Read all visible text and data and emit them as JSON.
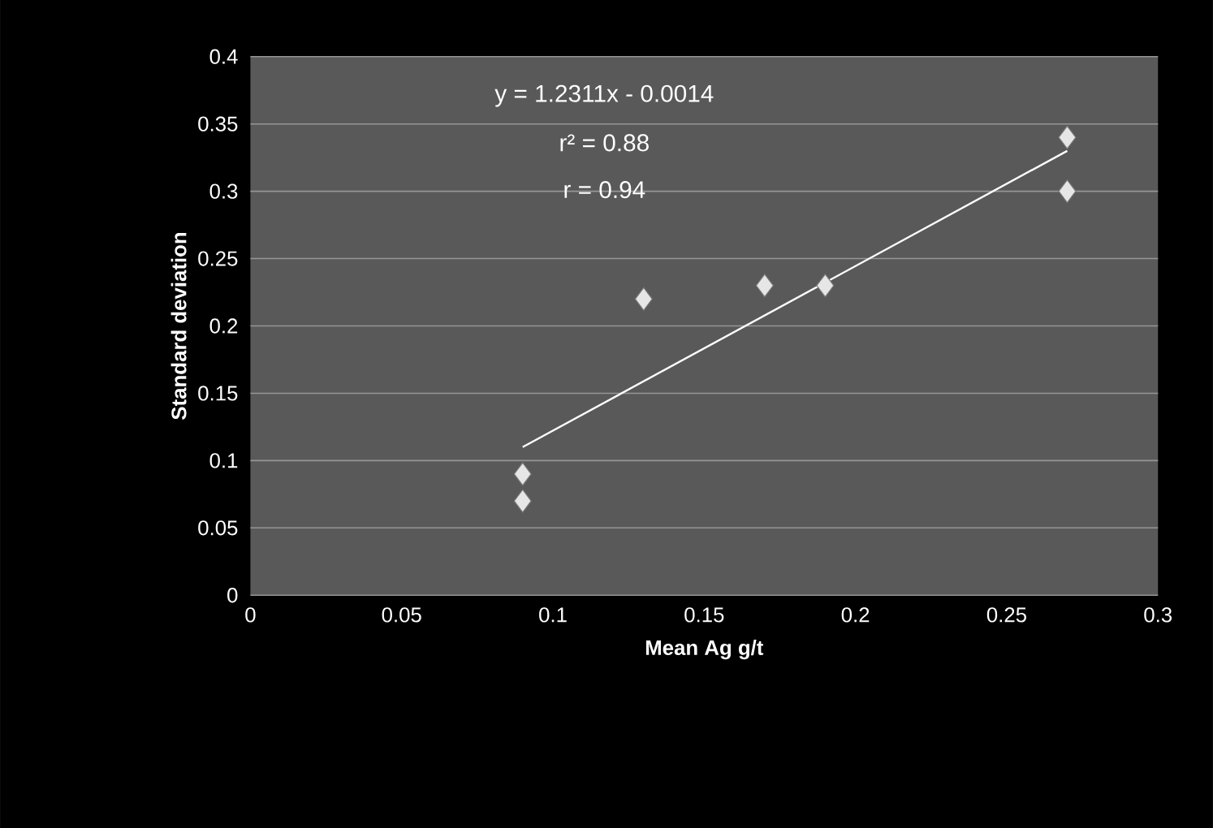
{
  "chart_data": {
    "type": "scatter",
    "xlabel": "Mean Ag g/t",
    "ylabel": "Standard deviation",
    "annotations": [
      "y = 1.2311x - 0.0014",
      "r² = 0.88",
      "r = 0.94"
    ],
    "series": [
      {
        "color": "#e6e6e6",
        "marker": "diamond",
        "x": [
          0.09,
          0.09,
          0.13,
          0.17,
          0.19,
          0.27,
          0.27
        ],
        "values": [
          0.09,
          0.07,
          0.22,
          0.23,
          0.23,
          0.34,
          0.3
        ]
      },
      {
        "type": "line",
        "color": "#ffffff",
        "marker": "none",
        "line_style": "solid",
        "x": [
          0.09,
          0.27
        ],
        "values": [
          0.11,
          0.33
        ]
      }
    ],
    "xlim": [
      0,
      0.3
    ],
    "xticks": [
      0,
      0.05,
      0.1,
      0.15,
      0.2,
      0.25,
      0.3
    ],
    "ylim": [
      0,
      0.4
    ],
    "yticks": [
      0,
      0.05,
      0.1,
      0.15,
      0.2,
      0.25,
      0.3,
      0.35,
      0.4
    ],
    "grid": "y"
  }
}
